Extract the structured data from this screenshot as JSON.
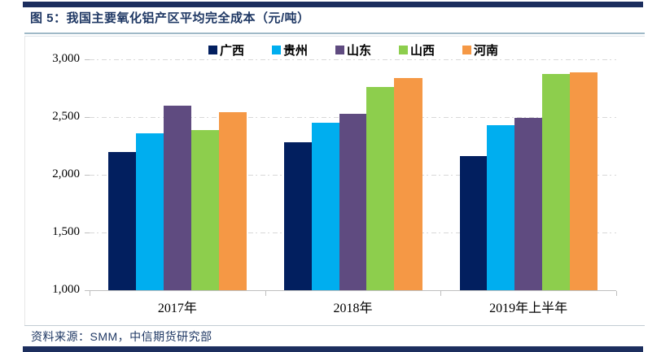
{
  "header": {
    "title": "图 5：我国主要氧化铝产区平均完全成本（元/吨）"
  },
  "footer": {
    "source": "资料来源：SMM，中信期货研究部"
  },
  "colors": {
    "frame_bar_navy": "#1c2e5e",
    "title_text": "#1f3864",
    "source_text": "#1f3864",
    "gridline": "#d8d8d8",
    "axis": "#bfbfbf"
  },
  "chart_data": {
    "type": "bar",
    "title": "我国主要氧化铝产区平均完全成本（元/吨）",
    "categories": [
      "2017年",
      "2018年",
      "2019年上半年"
    ],
    "series": [
      {
        "name": "广西",
        "color": "#021f5f",
        "values": [
          2200,
          2280,
          2160
        ]
      },
      {
        "name": "贵州",
        "color": "#00aeef",
        "values": [
          2360,
          2450,
          2430
        ]
      },
      {
        "name": "山东",
        "color": "#5f4b80",
        "values": [
          2600,
          2530,
          2490
        ]
      },
      {
        "name": "山西",
        "color": "#8dce4d",
        "values": [
          2390,
          2760,
          2870
        ]
      },
      {
        "name": "河南",
        "color": "#f59845",
        "values": [
          2540,
          2840,
          2890
        ]
      }
    ],
    "ylim": [
      1000,
      3000
    ],
    "yticks": [
      {
        "value": 1000,
        "label": "1,000"
      },
      {
        "value": 1500,
        "label": "1,500"
      },
      {
        "value": 2000,
        "label": "2,000"
      },
      {
        "value": 2500,
        "label": "2,500"
      },
      {
        "value": 3000,
        "label": "3,000"
      }
    ],
    "xlabel": "",
    "ylabel": "",
    "legend_position": "top-center",
    "grid": "horizontal-dash-dot"
  }
}
